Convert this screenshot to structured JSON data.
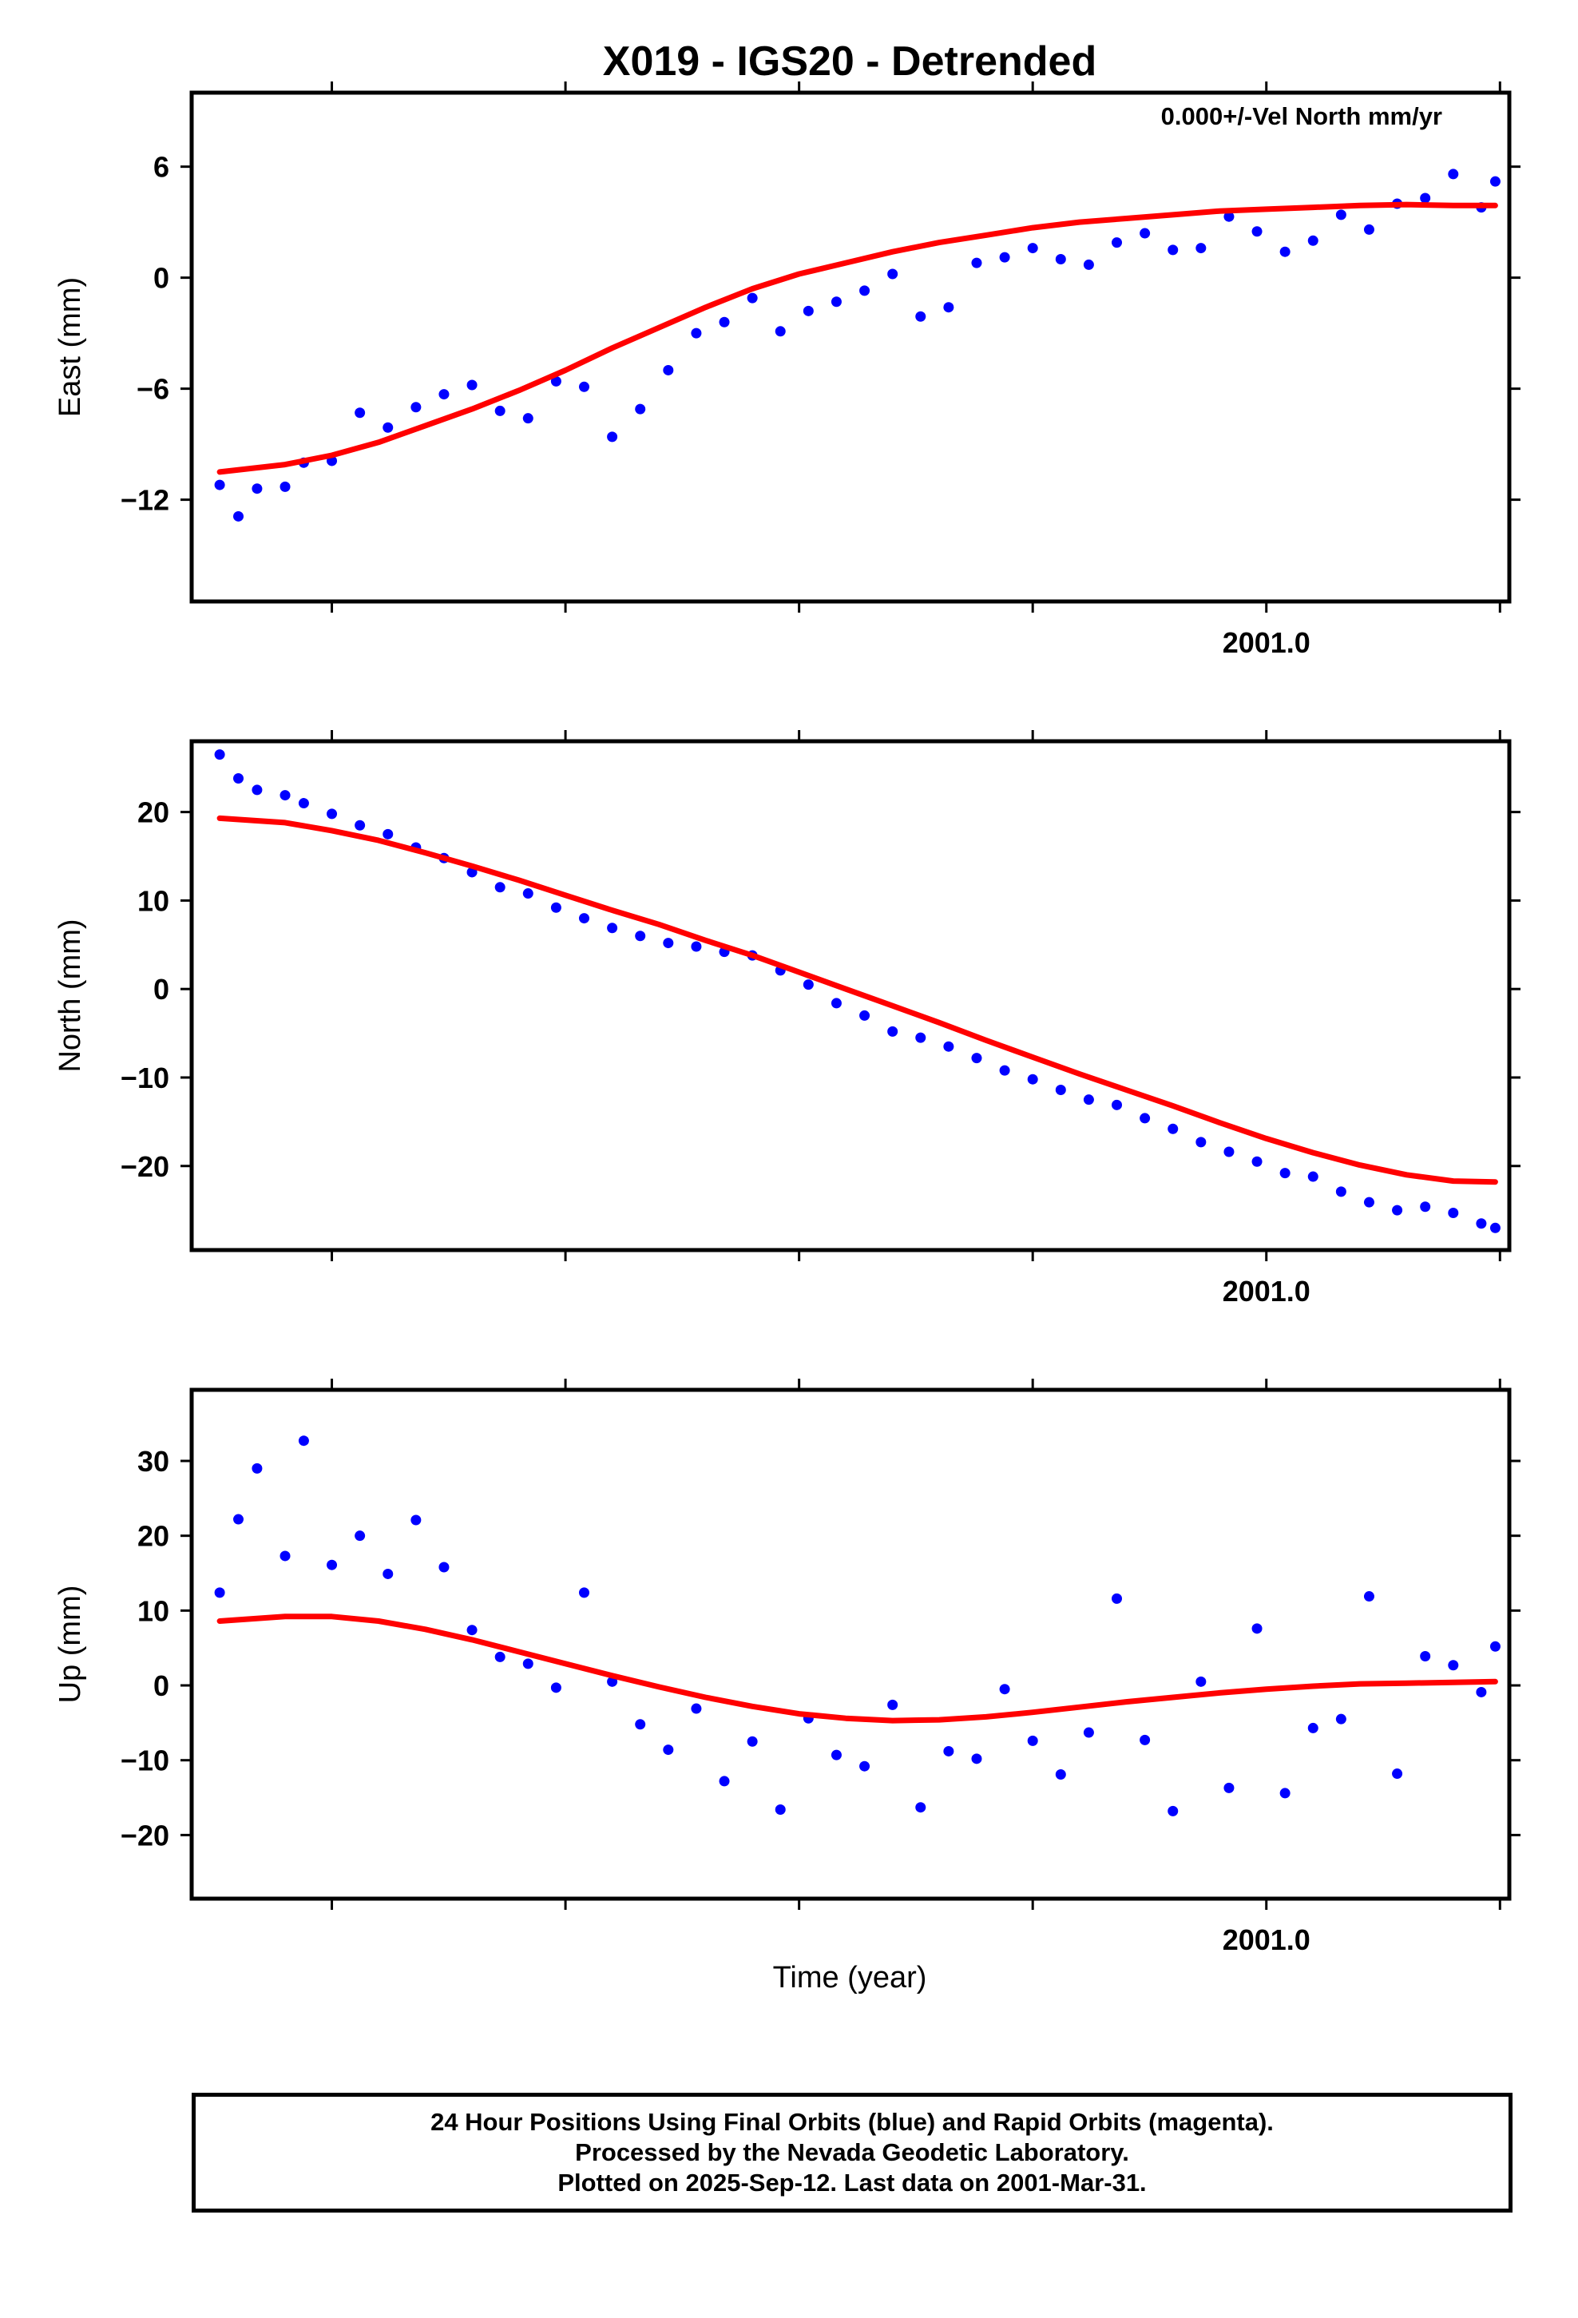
{
  "title": "X019 - IGS20 - Detrended",
  "annotation": "0.000+/-Vel North mm/yr",
  "footer": {
    "line1": "24 Hour Positions Using Final Orbits (blue) and Rapid Orbits (magenta).",
    "line2": "Processed by the Nevada Geodetic Laboratory.",
    "line3": "Plotted on 2025-Sep-12. Last data on 2001-Mar-31."
  },
  "colors": {
    "points": "#0000ff",
    "model": "#ff0000",
    "axes": "#000000"
  },
  "chart_data": [
    {
      "type": "scatter",
      "panel": "east",
      "ylabel": "East (mm)",
      "xlabel": "",
      "xlim": [
        1999.85,
        2001.26
      ],
      "ylim": [
        -17.5,
        10
      ],
      "yticks": [
        6,
        0,
        -6,
        -12
      ],
      "xticks": [
        2000.0,
        2000.25,
        2000.5,
        2000.75,
        2001.0,
        2001.25,
        2001.5
      ],
      "xticklabels": [
        {
          "x": 2001.0,
          "label": "2001.0"
        }
      ],
      "series": [
        {
          "kind": "points",
          "x": [
            1999.88,
            1999.9,
            1999.92,
            1999.95,
            1999.97,
            2000.0,
            2000.03,
            2000.06,
            2000.09,
            2000.12,
            2000.15,
            2000.18,
            2000.21,
            2000.24,
            2000.27,
            2000.3,
            2000.33,
            2000.36,
            2000.39,
            2000.42,
            2000.45,
            2000.48,
            2000.51,
            2000.54,
            2000.57,
            2000.6,
            2000.63,
            2000.66,
            2000.69,
            2000.72,
            2000.75,
            2000.78,
            2000.81,
            2000.84,
            2000.87,
            2000.9,
            2000.93,
            2000.96,
            2000.99,
            2001.02,
            2001.05,
            2001.08,
            2001.11,
            2001.14,
            2001.17,
            2001.2,
            2001.23,
            2001.245
          ],
          "y": [
            -11.2,
            -12.9,
            -11.4,
            -11.3,
            -10.0,
            -9.9,
            -7.3,
            -8.1,
            -7.0,
            -6.3,
            -5.8,
            -7.2,
            -7.6,
            -5.6,
            -5.9,
            -8.6,
            -7.1,
            -5.0,
            -3.0,
            -2.4,
            -1.1,
            -2.9,
            -1.8,
            -1.3,
            -0.7,
            0.2,
            -2.1,
            -1.6,
            0.8,
            1.1,
            1.6,
            1.0,
            0.7,
            1.9,
            2.4,
            1.5,
            1.6,
            3.3,
            2.5,
            1.4,
            2.0,
            3.4,
            2.6,
            4.0,
            4.3,
            5.6,
            3.8,
            5.2
          ]
        },
        {
          "kind": "model",
          "x": [
            1999.88,
            1999.95,
            2000.0,
            2000.05,
            2000.1,
            2000.15,
            2000.2,
            2000.25,
            2000.3,
            2000.35,
            2000.4,
            2000.45,
            2000.5,
            2000.55,
            2000.6,
            2000.65,
            2000.7,
            2000.75,
            2000.8,
            2000.85,
            2000.9,
            2000.95,
            2001.0,
            2001.05,
            2001.1,
            2001.15,
            2001.2,
            2001.245
          ],
          "y": [
            -10.5,
            -10.1,
            -9.6,
            -8.9,
            -8.0,
            -7.1,
            -6.1,
            -5.0,
            -3.8,
            -2.7,
            -1.6,
            -0.6,
            0.2,
            0.8,
            1.4,
            1.9,
            2.3,
            2.7,
            3.0,
            3.2,
            3.4,
            3.6,
            3.7,
            3.8,
            3.9,
            3.95,
            3.9,
            3.9
          ]
        }
      ]
    },
    {
      "type": "scatter",
      "panel": "north",
      "ylabel": "North (mm)",
      "xlabel": "",
      "xlim": [
        1999.85,
        2001.26
      ],
      "ylim": [
        -29.5,
        28
      ],
      "yticks": [
        20,
        10,
        0,
        -10,
        -20
      ],
      "xticks": [
        2000.0,
        2000.25,
        2000.5,
        2000.75,
        2001.0,
        2001.25,
        2001.5
      ],
      "xticklabels": [
        {
          "x": 2001.0,
          "label": "2001.0"
        }
      ],
      "series": [
        {
          "kind": "points",
          "x": [
            1999.88,
            1999.9,
            1999.92,
            1999.95,
            1999.97,
            2000.0,
            2000.03,
            2000.06,
            2000.09,
            2000.12,
            2000.15,
            2000.18,
            2000.21,
            2000.24,
            2000.27,
            2000.3,
            2000.33,
            2000.36,
            2000.39,
            2000.42,
            2000.45,
            2000.48,
            2000.51,
            2000.54,
            2000.57,
            2000.6,
            2000.63,
            2000.66,
            2000.69,
            2000.72,
            2000.75,
            2000.78,
            2000.81,
            2000.84,
            2000.87,
            2000.9,
            2000.93,
            2000.96,
            2000.99,
            2001.02,
            2001.05,
            2001.08,
            2001.11,
            2001.14,
            2001.17,
            2001.2,
            2001.23,
            2001.245
          ],
          "y": [
            26.5,
            23.8,
            22.5,
            21.9,
            21.0,
            19.8,
            18.5,
            17.5,
            16.0,
            14.8,
            13.2,
            11.5,
            10.8,
            9.2,
            8.0,
            6.9,
            6.0,
            5.2,
            4.8,
            4.2,
            3.8,
            2.1,
            0.5,
            -1.6,
            -3.0,
            -4.8,
            -5.5,
            -6.5,
            -7.8,
            -9.2,
            -10.2,
            -11.4,
            -12.5,
            -13.1,
            -14.6,
            -15.8,
            -17.3,
            -18.4,
            -19.5,
            -20.8,
            -21.2,
            -22.9,
            -24.1,
            -25.0,
            -24.6,
            -25.3,
            -26.5,
            -27.0
          ]
        },
        {
          "kind": "model",
          "x": [
            1999.88,
            1999.95,
            2000.0,
            2000.05,
            2000.1,
            2000.15,
            2000.2,
            2000.25,
            2000.3,
            2000.35,
            2000.4,
            2000.45,
            2000.5,
            2000.55,
            2000.6,
            2000.65,
            2000.7,
            2000.75,
            2000.8,
            2000.85,
            2000.9,
            2000.95,
            2001.0,
            2001.05,
            2001.1,
            2001.15,
            2001.2,
            2001.245
          ],
          "y": [
            19.3,
            18.8,
            17.9,
            16.8,
            15.4,
            13.9,
            12.3,
            10.6,
            8.9,
            7.3,
            5.5,
            3.8,
            1.9,
            0.0,
            -1.9,
            -3.8,
            -5.8,
            -7.7,
            -9.6,
            -11.4,
            -13.2,
            -15.1,
            -16.9,
            -18.5,
            -19.9,
            -21.0,
            -21.7,
            -21.8
          ]
        }
      ]
    },
    {
      "type": "scatter",
      "panel": "up",
      "ylabel": "Up (mm)",
      "xlabel": "Time (year)",
      "xlim": [
        1999.85,
        2001.26
      ],
      "ylim": [
        -28.5,
        39.5
      ],
      "yticks": [
        30,
        20,
        10,
        0,
        -10,
        -20
      ],
      "xticks": [
        2000.0,
        2000.25,
        2000.5,
        2000.75,
        2001.0,
        2001.25,
        2001.5
      ],
      "xticklabels": [
        {
          "x": 2001.0,
          "label": "2001.0"
        }
      ],
      "series": [
        {
          "kind": "points",
          "x": [
            1999.88,
            1999.9,
            1999.92,
            1999.95,
            1999.97,
            2000.0,
            2000.03,
            2000.06,
            2000.09,
            2000.12,
            2000.15,
            2000.18,
            2000.21,
            2000.24,
            2000.27,
            2000.3,
            2000.33,
            2000.36,
            2000.39,
            2000.42,
            2000.45,
            2000.48,
            2000.51,
            2000.54,
            2000.57,
            2000.6,
            2000.63,
            2000.66,
            2000.69,
            2000.72,
            2000.75,
            2000.78,
            2000.81,
            2000.84,
            2000.87,
            2000.9,
            2000.93,
            2000.96,
            2000.99,
            2001.02,
            2001.05,
            2001.08,
            2001.11,
            2001.14,
            2001.17,
            2001.2,
            2001.23,
            2001.245
          ],
          "y": [
            12.4,
            22.2,
            29.0,
            17.3,
            32.7,
            16.1,
            20.0,
            14.9,
            22.1,
            15.8,
            7.4,
            3.8,
            2.9,
            -0.3,
            12.4,
            0.5,
            -5.2,
            -8.6,
            -3.1,
            -12.8,
            -7.5,
            -16.6,
            -4.4,
            -9.3,
            -10.8,
            -2.6,
            -16.3,
            -8.8,
            -9.8,
            -0.5,
            -7.4,
            -11.9,
            -6.3,
            11.6,
            -7.3,
            -16.8,
            0.5,
            -13.7,
            7.6,
            -14.4,
            -5.7,
            -4.5,
            11.9,
            -11.8,
            3.9,
            2.7,
            -0.9,
            5.2
          ]
        },
        {
          "kind": "model",
          "x": [
            1999.88,
            1999.95,
            2000.0,
            2000.05,
            2000.1,
            2000.15,
            2000.2,
            2000.25,
            2000.3,
            2000.35,
            2000.4,
            2000.45,
            2000.5,
            2000.55,
            2000.6,
            2000.65,
            2000.7,
            2000.75,
            2000.8,
            2000.85,
            2000.9,
            2000.95,
            2001.0,
            2001.05,
            2001.1,
            2001.15,
            2001.2,
            2001.245
          ],
          "y": [
            8.6,
            9.2,
            9.2,
            8.6,
            7.5,
            6.1,
            4.5,
            2.9,
            1.3,
            -0.2,
            -1.6,
            -2.8,
            -3.8,
            -4.4,
            -4.7,
            -4.6,
            -4.2,
            -3.6,
            -2.9,
            -2.2,
            -1.6,
            -1.0,
            -0.5,
            -0.1,
            0.2,
            0.3,
            0.4,
            0.5
          ]
        }
      ]
    }
  ]
}
